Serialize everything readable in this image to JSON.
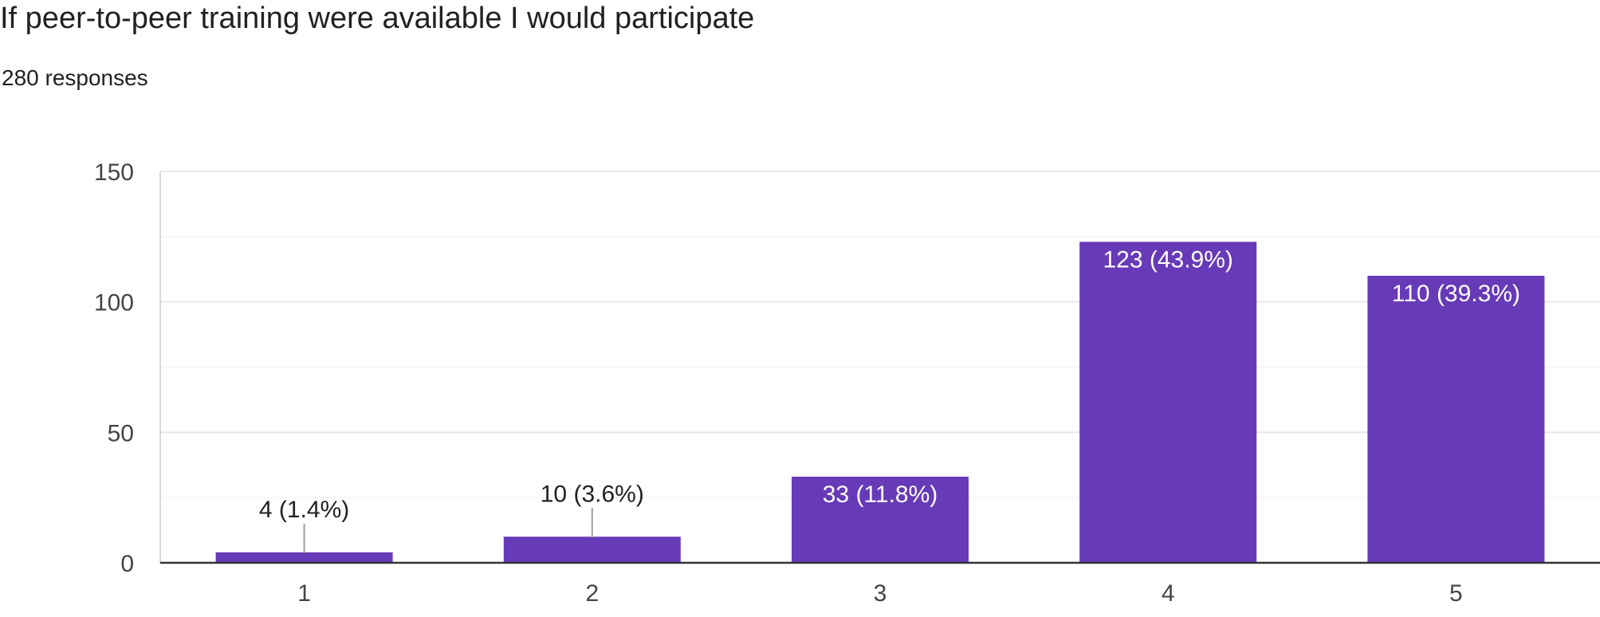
{
  "question": {
    "title": "If peer-to-peer training were available I would participate",
    "responses": "280 responses"
  },
  "colors": {
    "bar": "#673ab7",
    "gridline": "#e8e8e8",
    "minor_gridline": "#f3f3f3",
    "axis": "#333333",
    "text": "#202124",
    "label_inside": "#ffffff",
    "leader": "#9e9e9e"
  },
  "chart_data": {
    "type": "bar",
    "categories": [
      "1",
      "2",
      "3",
      "4",
      "5"
    ],
    "values": [
      4,
      10,
      33,
      123,
      110
    ],
    "data_labels": [
      "4 (1.4%)",
      "10 (3.6%)",
      "33 (11.8%)",
      "123 (43.9%)",
      "110 (39.3%)"
    ],
    "yticks": [
      "0",
      "50",
      "100",
      "150"
    ],
    "ylim": [
      0,
      150
    ],
    "grid": true
  }
}
